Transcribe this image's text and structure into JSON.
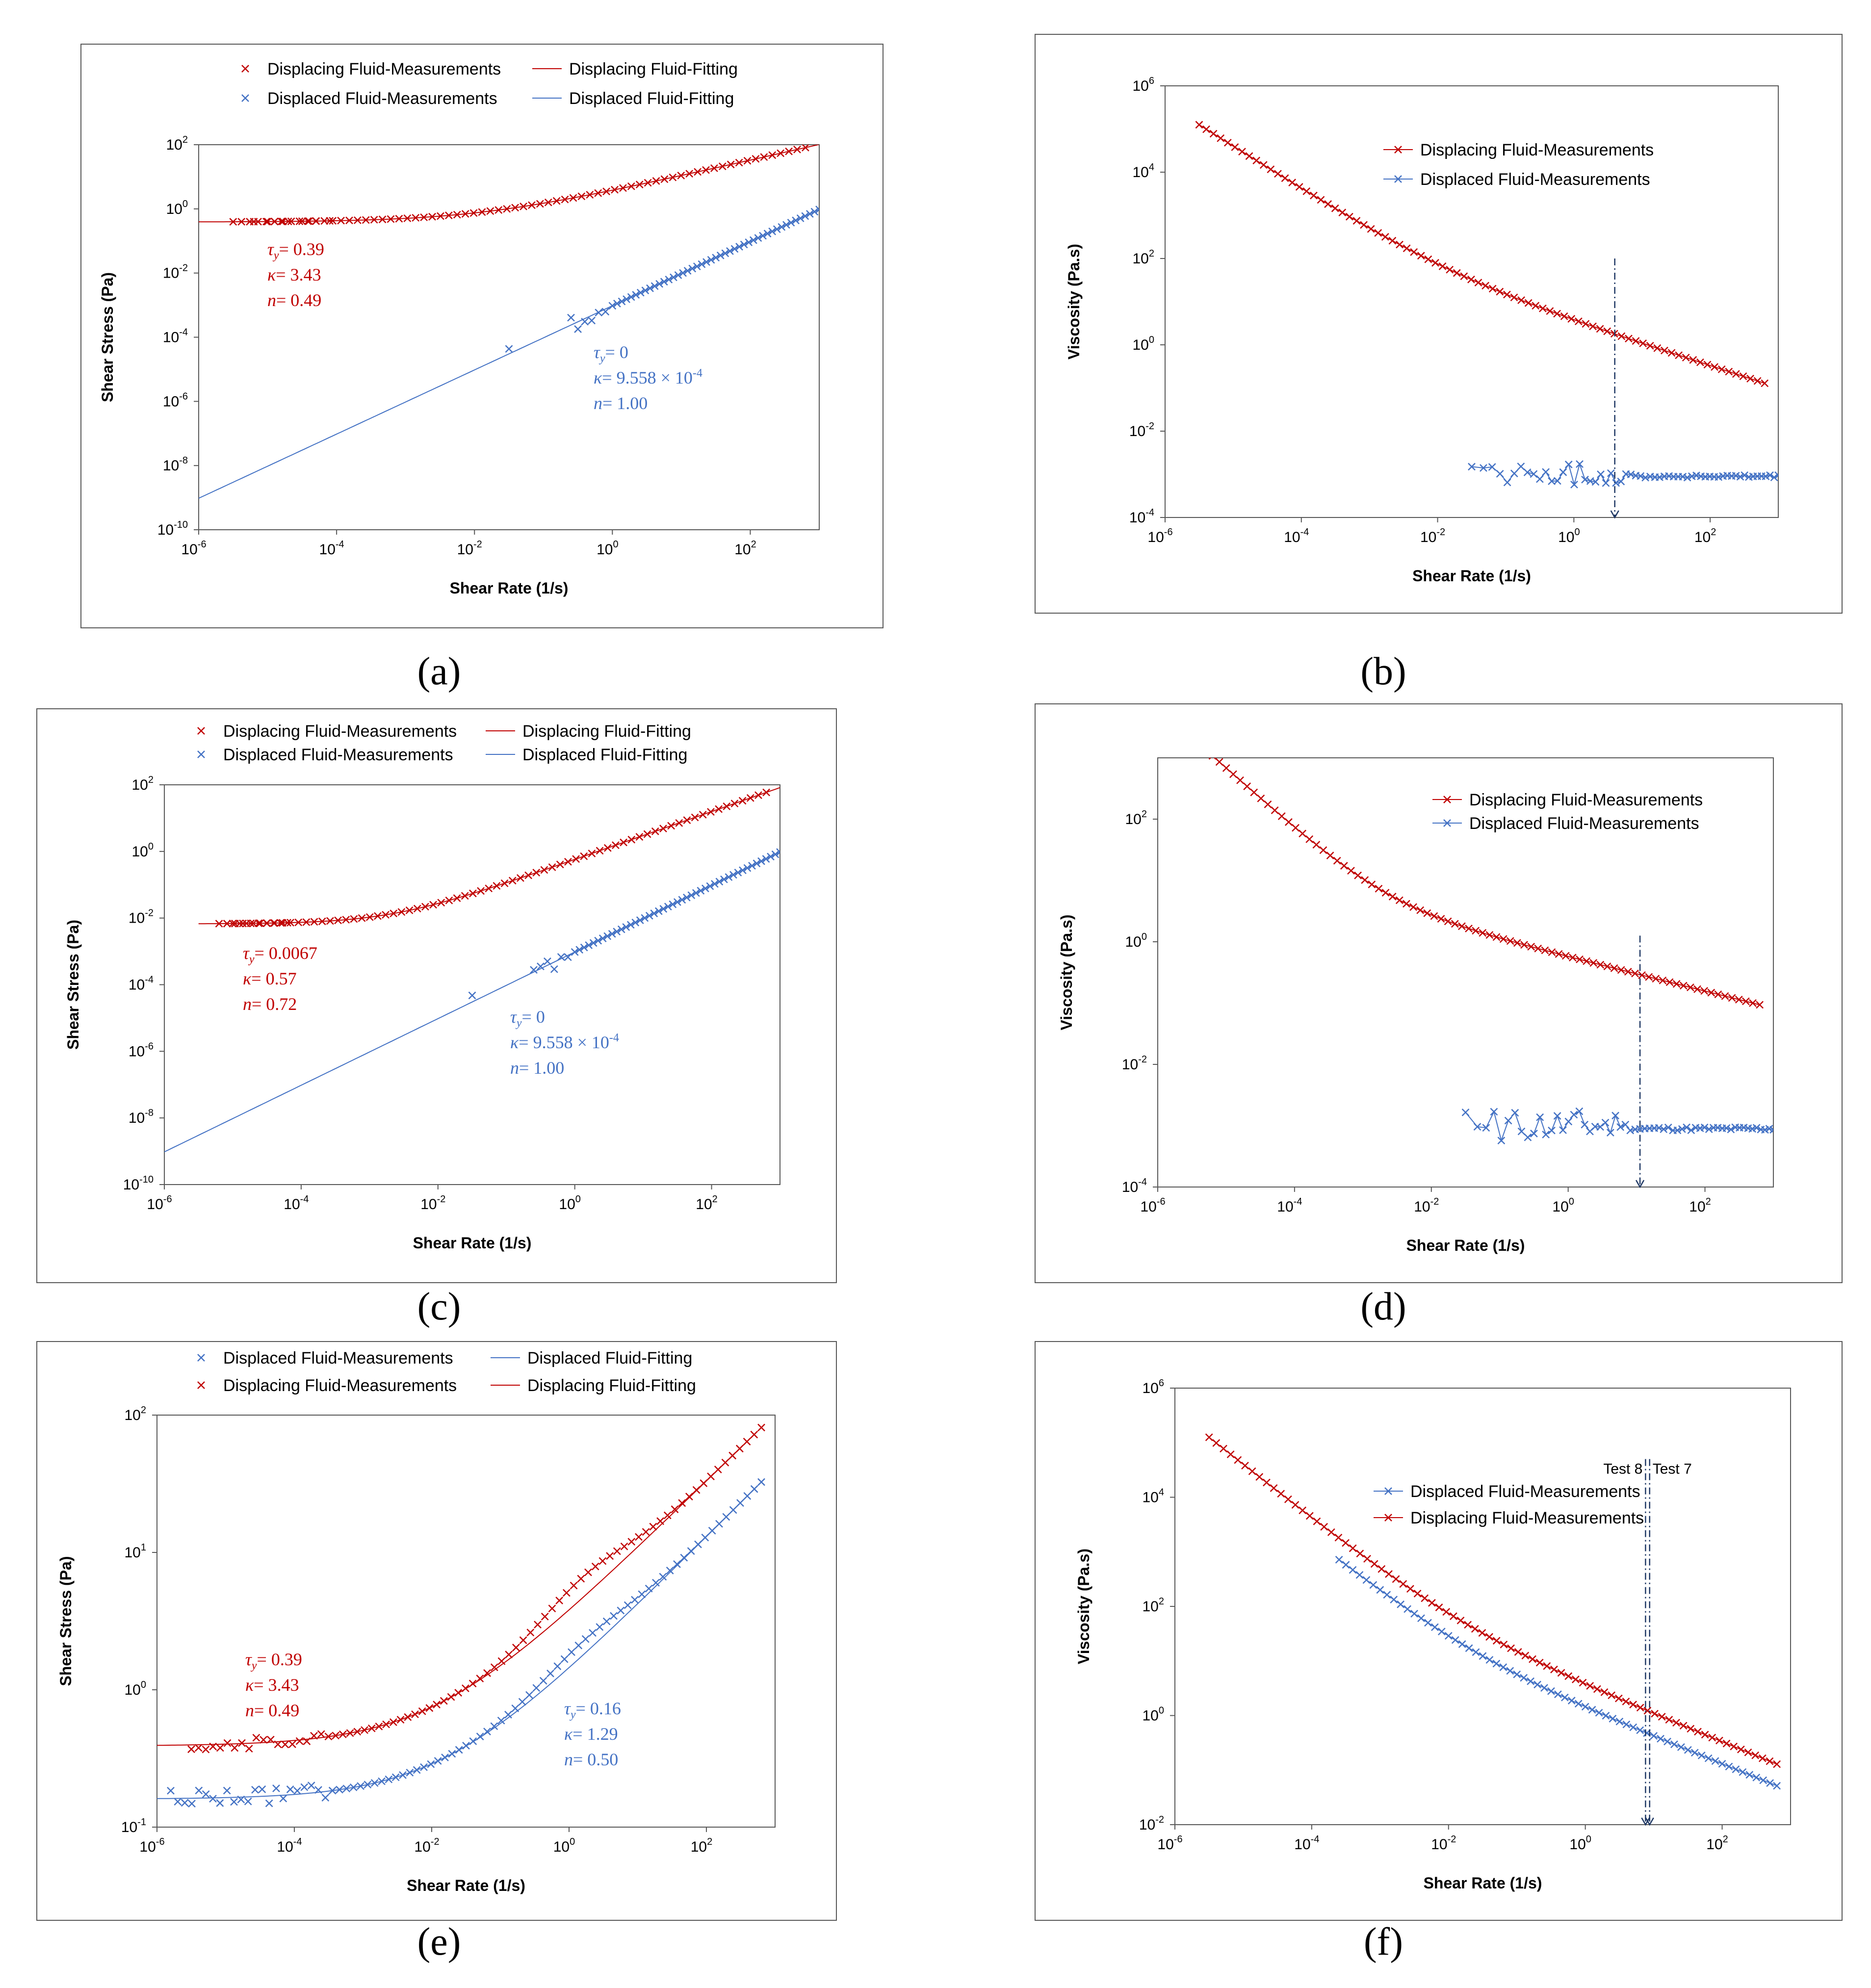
{
  "figure": {
    "panels": [
      "(a)",
      "(b)",
      "(c)",
      "(d)",
      "(e)",
      "(f)"
    ]
  },
  "colors": {
    "red": "#c00000",
    "blue": "#4472c4",
    "gray": "#595959",
    "dash": "#1f3864"
  },
  "chart_data": [
    {
      "panel": "a",
      "label": "(a)",
      "type": "scatter",
      "xlabel": "Shear Rate (1/s)",
      "ylabel": "Shear Stress (Pa)",
      "xlim": [
        -6,
        3
      ],
      "ylim": [
        -10,
        2
      ],
      "xticks": [
        -6,
        -4,
        -2,
        0,
        2
      ],
      "yticks": [
        -10,
        -8,
        -6,
        -4,
        -2,
        0,
        2
      ],
      "legend": [
        {
          "text": "Displacing Fluid-Measurements",
          "kind": "marker",
          "color": "red"
        },
        {
          "text": "Displacing Fluid-Fitting",
          "kind": "line",
          "color": "red"
        },
        {
          "text": "Displaced Fluid-Measurements",
          "kind": "marker",
          "color": "blue"
        },
        {
          "text": "Displaced Fluid-Fitting",
          "kind": "line",
          "color": "blue"
        }
      ],
      "params": [
        {
          "color": "red",
          "lines": [
            "τy= 0.39",
            "κ= 3.43",
            "n= 0.49"
          ]
        },
        {
          "color": "blue",
          "lines": [
            "τy= 0",
            "κ= 9.558 × 10-4",
            "n= 1.00"
          ]
        }
      ],
      "series": [
        {
          "name": "Displacing Fluid-Measurements",
          "color": "red",
          "kind": "hb",
          "ty": 0.39,
          "k": 3.43,
          "n": 0.49,
          "xr": [
            -5.5,
            2.8
          ],
          "count": 70,
          "low_extra": [
            -5.2,
            -5.0,
            -4.9,
            -4.8,
            -4.7,
            -4.5,
            -4.4,
            -4.3,
            -4.1
          ]
        },
        {
          "name": "Displaced Fluid-Measurements",
          "color": "blue",
          "kind": "hb",
          "ty": 0,
          "k": 0.0009558,
          "n": 1.0,
          "xr": [
            0.0,
            3.0
          ],
          "count": 45,
          "low_extra": [
            -1.5,
            -0.6,
            -0.5,
            -0.4,
            -0.3,
            -0.2,
            -0.1
          ],
          "noise": 0.25
        }
      ],
      "fits": [
        {
          "name": "Displacing Fluid-Fitting",
          "color": "red",
          "ty": 0.39,
          "k": 3.43,
          "n": 0.49,
          "xr": [
            -6,
            3
          ]
        },
        {
          "name": "Displaced Fluid-Fitting",
          "color": "blue",
          "ty": 0,
          "k": 0.0009558,
          "n": 1.0,
          "xr": [
            -6,
            3
          ]
        }
      ]
    },
    {
      "panel": "b",
      "label": "(b)",
      "type": "line",
      "xlabel": "Shear Rate (1/s)",
      "ylabel": "Viscosity (Pa.s)",
      "xlim": [
        -6,
        3
      ],
      "ylim": [
        -4,
        6
      ],
      "xticks": [
        -6,
        -4,
        -2,
        0,
        2
      ],
      "yticks": [
        -4,
        -2,
        0,
        2,
        4,
        6
      ],
      "legend": [
        {
          "text": "Displacing Fluid-Measurements",
          "kind": "markerline",
          "color": "red"
        },
        {
          "text": "Displaced Fluid-Measurements",
          "kind": "markerline",
          "color": "blue"
        }
      ],
      "series": [
        {
          "name": "Displacing Fluid-Measurements",
          "color": "red",
          "kind": "visc",
          "ty": 0.39,
          "k": 3.43,
          "n": 0.49,
          "xr": [
            -5.5,
            2.8
          ],
          "count": 80
        },
        {
          "name": "Displaced Fluid-Measurements",
          "color": "blue",
          "kind": "flat",
          "level": -3.0,
          "xr": [
            -1.5,
            3.0
          ],
          "count": 60,
          "noise": 0.25
        }
      ],
      "vlines": [
        {
          "x": 0.6,
          "ytop": 2.0
        }
      ]
    },
    {
      "panel": "c",
      "label": "(c)",
      "type": "scatter",
      "xlabel": "Shear Rate (1/s)",
      "ylabel": "Shear Stress (Pa)",
      "xlim": [
        -6,
        3
      ],
      "ylim": [
        -10,
        2
      ],
      "xticks": [
        -6,
        -4,
        -2,
        0,
        2
      ],
      "yticks": [
        -10,
        -8,
        -6,
        -4,
        -2,
        0,
        2
      ],
      "legend": [
        {
          "text": "Displacing Fluid-Measurements",
          "kind": "marker",
          "color": "red"
        },
        {
          "text": "Displacing Fluid-Fitting",
          "kind": "line",
          "color": "red"
        },
        {
          "text": "Displaced Fluid-Measurements",
          "kind": "marker",
          "color": "blue"
        },
        {
          "text": "Displaced Fluid-Fitting",
          "kind": "line",
          "color": "blue"
        }
      ],
      "params": [
        {
          "color": "red",
          "lines": [
            "τy= 0.0067",
            "κ= 0.57",
            "n= 0.72"
          ]
        },
        {
          "color": "blue",
          "lines": [
            "τy= 0",
            "κ= 9.558 × 10-4",
            "n= 1.00"
          ]
        }
      ],
      "series": [
        {
          "name": "Displacing Fluid-Measurements",
          "color": "red",
          "kind": "hb",
          "ty": 0.0067,
          "k": 0.57,
          "n": 0.72,
          "xr": [
            -5.2,
            2.8
          ],
          "count": 70,
          "low_extra": [
            -5.0,
            -4.9,
            -4.8,
            -4.7,
            -4.6,
            -4.5,
            -4.4,
            -4.3,
            -4.2
          ]
        },
        {
          "name": "Displaced Fluid-Measurements",
          "color": "blue",
          "kind": "hb",
          "ty": 0,
          "k": 0.0009558,
          "n": 1.0,
          "xr": [
            0.0,
            3.0
          ],
          "count": 45,
          "low_extra": [
            -1.5,
            -0.6,
            -0.5,
            -0.4,
            -0.3,
            -0.2,
            -0.1
          ],
          "noise": 0.25
        }
      ],
      "fits": [
        {
          "name": "Displacing Fluid-Fitting",
          "color": "red",
          "ty": 0.0067,
          "k": 0.57,
          "n": 0.72,
          "xr": [
            -5.5,
            3
          ]
        },
        {
          "name": "Displaced Fluid-Fitting",
          "color": "blue",
          "ty": 0,
          "k": 0.0009558,
          "n": 1.0,
          "xr": [
            -6,
            3
          ]
        }
      ]
    },
    {
      "panel": "d",
      "label": "(d)",
      "type": "line",
      "xlabel": "Shear Rate (1/s)",
      "ylabel": "Viscosity (Pa.s)",
      "xlim": [
        -6,
        3
      ],
      "ylim": [
        -4,
        3
      ],
      "xticks": [
        -6,
        -4,
        -2,
        0,
        2
      ],
      "yticks": [
        -4,
        -2,
        0,
        2
      ],
      "legend": [
        {
          "text": "Displacing Fluid-Measurements",
          "kind": "markerline",
          "color": "red"
        },
        {
          "text": "Displaced Fluid-Measurements",
          "kind": "markerline",
          "color": "blue"
        }
      ],
      "series": [
        {
          "name": "Displacing Fluid-Measurements",
          "color": "red",
          "kind": "visc",
          "ty": 0.0067,
          "k": 0.57,
          "n": 0.72,
          "xr": [
            -5.2,
            2.8
          ],
          "count": 80
        },
        {
          "name": "Displaced Fluid-Measurements",
          "color": "blue",
          "kind": "flat",
          "level": -3.0,
          "xr": [
            -1.5,
            3.0
          ],
          "count": 60,
          "noise": 0.25
        }
      ],
      "vlines": [
        {
          "x": 1.05,
          "ytop": 0.1
        }
      ]
    },
    {
      "panel": "e",
      "label": "(e)",
      "type": "scatter",
      "xlabel": "Shear Rate (1/s)",
      "ylabel": "Shear Stress (Pa)",
      "xlim": [
        -6,
        3
      ],
      "ylim": [
        -1,
        2
      ],
      "xticks": [
        -6,
        -4,
        -2,
        0,
        2
      ],
      "yticks": [
        -1,
        0,
        1,
        2
      ],
      "legend": [
        {
          "text": "Displaced Fluid-Measurements",
          "kind": "marker",
          "color": "blue"
        },
        {
          "text": "Displaced Fluid-Fitting",
          "kind": "line",
          "color": "blue"
        },
        {
          "text": "Displacing Fluid-Measurements",
          "kind": "marker",
          "color": "red"
        },
        {
          "text": "Displacing Fluid-Fitting",
          "kind": "line",
          "color": "red"
        }
      ],
      "params": [
        {
          "color": "red",
          "lines": [
            "τy= 0.39",
            "κ= 3.43",
            "n= 0.49"
          ]
        },
        {
          "color": "blue",
          "lines": [
            "τy= 0.16",
            "κ= 1.29",
            "n= 0.50"
          ]
        }
      ],
      "series": [
        {
          "name": "Displacing Fluid-Measurements",
          "color": "red",
          "kind": "hb",
          "ty": 0.39,
          "k": 3.43,
          "n": 0.49,
          "xr": [
            -5.5,
            2.8
          ],
          "count": 80,
          "bump": 0.15,
          "noise": 0.04
        },
        {
          "name": "Displaced Fluid-Measurements",
          "color": "blue",
          "kind": "hb",
          "ty": 0.16,
          "k": 1.29,
          "n": 0.5,
          "xr": [
            -5.8,
            2.8
          ],
          "count": 85,
          "bump": 0.1,
          "noise": 0.06
        }
      ],
      "fits": [
        {
          "name": "Displacing Fluid-Fitting",
          "color": "red",
          "ty": 0.39,
          "k": 3.43,
          "n": 0.49,
          "xr": [
            -6,
            2.7
          ]
        },
        {
          "name": "Displaced Fluid-Fitting",
          "color": "blue",
          "ty": 0.16,
          "k": 1.29,
          "n": 0.5,
          "xr": [
            -6,
            2.7
          ]
        }
      ]
    },
    {
      "panel": "f",
      "label": "(f)",
      "type": "line",
      "xlabel": "Shear Rate (1/s)",
      "ylabel": "Viscosity (Pa.s)",
      "xlim": [
        -6,
        3
      ],
      "ylim": [
        -2,
        6
      ],
      "xticks": [
        -6,
        -4,
        -2,
        0,
        2
      ],
      "yticks": [
        -2,
        0,
        2,
        4,
        6
      ],
      "legend": [
        {
          "text": "Displaced Fluid-Measurements",
          "kind": "markerline",
          "color": "blue"
        },
        {
          "text": "Displacing Fluid-Measurements",
          "kind": "markerline",
          "color": "red"
        }
      ],
      "series": [
        {
          "name": "Displacing Fluid-Measurements",
          "color": "red",
          "kind": "visc",
          "ty": 0.39,
          "k": 3.43,
          "n": 0.49,
          "xr": [
            -5.5,
            2.8
          ],
          "count": 80
        },
        {
          "name": "Displaced Fluid-Measurements",
          "color": "blue",
          "kind": "visc",
          "ty": 0.16,
          "k": 1.29,
          "n": 0.5,
          "xr": [
            -3.6,
            2.8
          ],
          "count": 65
        }
      ],
      "vlines": [
        {
          "x": 0.88,
          "ytop": 4.7,
          "label": "Test 8",
          "side": "left"
        },
        {
          "x": 0.94,
          "ytop": 4.7,
          "label": "Test 7",
          "side": "right"
        }
      ]
    }
  ]
}
